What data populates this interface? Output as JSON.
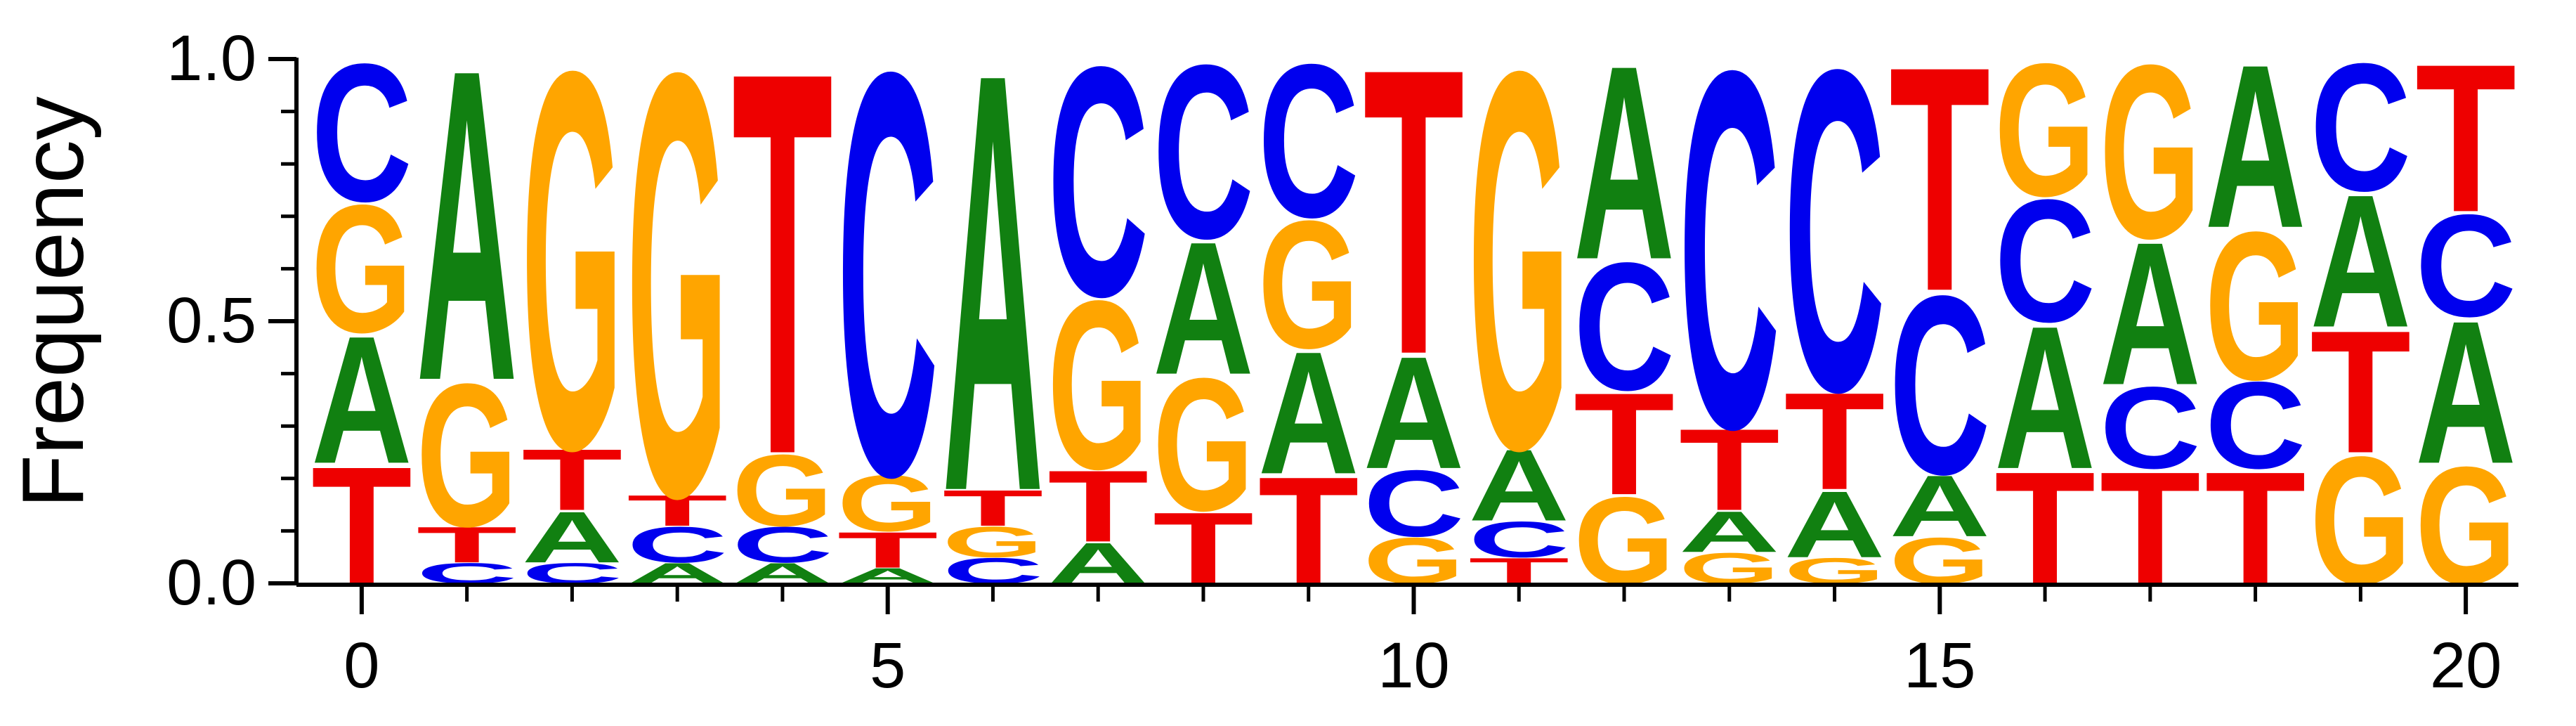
{
  "colors": {
    "A": "#118011",
    "C": "#0000ee",
    "G": "#ffa500",
    "T": "#ee0000",
    "axis": "#000000"
  },
  "chart_data": {
    "type": "sequence-logo",
    "ylabel": "Frequency",
    "ylim": [
      0.0,
      1.0
    ],
    "yticks": [
      "0.0",
      "0.5",
      "1.0"
    ],
    "xlim": [
      -0.5,
      20.5
    ],
    "xticks": [
      "0",
      "5",
      "10",
      "15",
      "20"
    ],
    "positions": [
      {
        "pos": 0,
        "stack": [
          [
            "T",
            0.23
          ],
          [
            "A",
            0.25
          ],
          [
            "G",
            0.25
          ],
          [
            "C",
            0.27
          ]
        ]
      },
      {
        "pos": 1,
        "stack": [
          [
            "C",
            0.04
          ],
          [
            "T",
            0.07
          ],
          [
            "G",
            0.28
          ],
          [
            "A",
            0.61
          ]
        ]
      },
      {
        "pos": 2,
        "stack": [
          [
            "C",
            0.04
          ],
          [
            "A",
            0.1
          ],
          [
            "T",
            0.12
          ],
          [
            "G",
            0.74
          ]
        ]
      },
      {
        "pos": 3,
        "stack": [
          [
            "A",
            0.04
          ],
          [
            "C",
            0.07
          ],
          [
            "T",
            0.06
          ],
          [
            "G",
            0.83
          ]
        ]
      },
      {
        "pos": 4,
        "stack": [
          [
            "A",
            0.04
          ],
          [
            "C",
            0.07
          ],
          [
            "G",
            0.14
          ],
          [
            "T",
            0.75
          ]
        ]
      },
      {
        "pos": 5,
        "stack": [
          [
            "A",
            0.03
          ],
          [
            "T",
            0.07
          ],
          [
            "G",
            0.11
          ],
          [
            "C",
            0.79
          ]
        ]
      },
      {
        "pos": 6,
        "stack": [
          [
            "C",
            0.05
          ],
          [
            "G",
            0.06
          ],
          [
            "T",
            0.07
          ],
          [
            "A",
            0.82
          ]
        ]
      },
      {
        "pos": 7,
        "stack": [
          [
            "A",
            0.08
          ],
          [
            "T",
            0.14
          ],
          [
            "G",
            0.33
          ],
          [
            "C",
            0.45
          ]
        ]
      },
      {
        "pos": 8,
        "stack": [
          [
            "T",
            0.14
          ],
          [
            "G",
            0.26
          ],
          [
            "A",
            0.26
          ],
          [
            "C",
            0.34
          ]
        ]
      },
      {
        "pos": 9,
        "stack": [
          [
            "T",
            0.21
          ],
          [
            "A",
            0.24
          ],
          [
            "G",
            0.25
          ],
          [
            "C",
            0.3
          ]
        ]
      },
      {
        "pos": 10,
        "stack": [
          [
            "G",
            0.09
          ],
          [
            "C",
            0.13
          ],
          [
            "A",
            0.22
          ],
          [
            "T",
            0.56
          ]
        ]
      },
      {
        "pos": 11,
        "stack": [
          [
            "T",
            0.05
          ],
          [
            "C",
            0.07
          ],
          [
            "A",
            0.14
          ],
          [
            "G",
            0.74
          ]
        ]
      },
      {
        "pos": 12,
        "stack": [
          [
            "G",
            0.17
          ],
          [
            "T",
            0.2
          ],
          [
            "C",
            0.25
          ],
          [
            "A",
            0.38
          ]
        ]
      },
      {
        "pos": 13,
        "stack": [
          [
            "G",
            0.06
          ],
          [
            "A",
            0.08
          ],
          [
            "T",
            0.16
          ],
          [
            "C",
            0.7
          ]
        ]
      },
      {
        "pos": 14,
        "stack": [
          [
            "G",
            0.05
          ],
          [
            "A",
            0.13
          ],
          [
            "T",
            0.19
          ],
          [
            "C",
            0.63
          ]
        ]
      },
      {
        "pos": 15,
        "stack": [
          [
            "G",
            0.09
          ],
          [
            "A",
            0.12
          ],
          [
            "C",
            0.35
          ],
          [
            "T",
            0.44
          ]
        ]
      },
      {
        "pos": 16,
        "stack": [
          [
            "T",
            0.22
          ],
          [
            "A",
            0.28
          ],
          [
            "C",
            0.24
          ],
          [
            "G",
            0.26
          ]
        ]
      },
      {
        "pos": 17,
        "stack": [
          [
            "T",
            0.22
          ],
          [
            "C",
            0.16
          ],
          [
            "A",
            0.28
          ],
          [
            "G",
            0.34
          ]
        ]
      },
      {
        "pos": 18,
        "stack": [
          [
            "T",
            0.22
          ],
          [
            "C",
            0.17
          ],
          [
            "G",
            0.29
          ],
          [
            "A",
            0.32
          ]
        ]
      },
      {
        "pos": 19,
        "stack": [
          [
            "G",
            0.25
          ],
          [
            "T",
            0.24
          ],
          [
            "A",
            0.26
          ],
          [
            "C",
            0.25
          ]
        ]
      },
      {
        "pos": 20,
        "stack": [
          [
            "G",
            0.23
          ],
          [
            "A",
            0.28
          ],
          [
            "C",
            0.2
          ],
          [
            "T",
            0.29
          ]
        ]
      }
    ]
  }
}
